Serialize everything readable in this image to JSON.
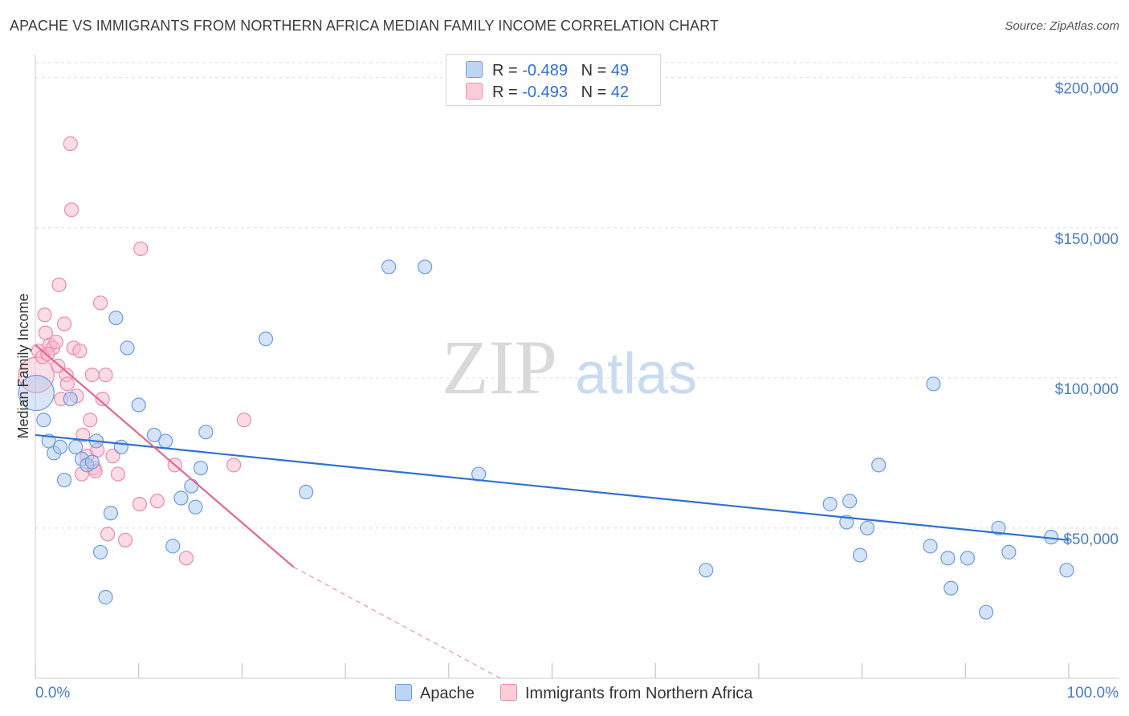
{
  "header": {
    "title": "APACHE VS IMMIGRANTS FROM NORTHERN AFRICA MEDIAN FAMILY INCOME CORRELATION CHART",
    "source": "Source: ZipAtlas.com"
  },
  "watermark": {
    "zip": "ZIP",
    "atlas": "atlas"
  },
  "legend": {
    "rows": [
      {
        "r_label": "R =",
        "r_value": "-0.489",
        "n_label": "N =",
        "n_value": "49"
      },
      {
        "r_label": "R =",
        "r_value": "-0.493",
        "n_label": "N =",
        "n_value": "42"
      }
    ]
  },
  "bottom_legend": {
    "apache": "Apache",
    "immigrants": "Immigrants from Northern Africa"
  },
  "colors": {
    "apache_fill": "#a9c8f0",
    "apache_stroke": "#6a9be0",
    "apache_line": "#2e72d2",
    "imm_fill": "#f7b8cb",
    "imm_stroke": "#ec8aa8",
    "imm_line": "#e56591",
    "grid": "#dddddd",
    "axis_text": "#4a7cc9"
  },
  "chart_data": {
    "type": "scatter",
    "title": "APACHE VS IMMIGRANTS FROM NORTHERN AFRICA MEDIAN FAMILY INCOME CORRELATION CHART",
    "xlabel": "",
    "ylabel": "Median Family Income",
    "xlim": [
      0,
      100
    ],
    "ylim": [
      0,
      205000
    ],
    "x_tick_labels": [
      "0.0%",
      "100.0%"
    ],
    "y_ticks": [
      50000,
      100000,
      150000,
      200000
    ],
    "y_tick_labels": [
      "$50,000",
      "$100,000",
      "$150,000",
      "$200,000"
    ],
    "series": [
      {
        "name": "Apache",
        "r": -0.489,
        "n": 49,
        "trend": {
          "x0": 0,
          "y0": 81000,
          "x1": 100,
          "y1": 46000
        },
        "points": [
          {
            "x": 0.1,
            "y": 95000,
            "big": true
          },
          {
            "x": 0.8,
            "y": 86000
          },
          {
            "x": 1.3,
            "y": 79000
          },
          {
            "x": 1.8,
            "y": 75000
          },
          {
            "x": 2.4,
            "y": 77000
          },
          {
            "x": 2.8,
            "y": 66000
          },
          {
            "x": 3.4,
            "y": 93000
          },
          {
            "x": 3.9,
            "y": 77000
          },
          {
            "x": 4.5,
            "y": 73000
          },
          {
            "x": 5.0,
            "y": 71000
          },
          {
            "x": 5.5,
            "y": 72000
          },
          {
            "x": 5.9,
            "y": 79000
          },
          {
            "x": 6.3,
            "y": 42000
          },
          {
            "x": 6.8,
            "y": 27000
          },
          {
            "x": 7.3,
            "y": 55000
          },
          {
            "x": 7.8,
            "y": 120000
          },
          {
            "x": 8.3,
            "y": 77000
          },
          {
            "x": 8.9,
            "y": 110000
          },
          {
            "x": 10.0,
            "y": 91000
          },
          {
            "x": 11.5,
            "y": 81000
          },
          {
            "x": 12.6,
            "y": 79000
          },
          {
            "x": 13.3,
            "y": 44000
          },
          {
            "x": 14.1,
            "y": 60000
          },
          {
            "x": 15.1,
            "y": 64000
          },
          {
            "x": 15.5,
            "y": 57000
          },
          {
            "x": 16.0,
            "y": 70000
          },
          {
            "x": 16.5,
            "y": 82000
          },
          {
            "x": 22.3,
            "y": 113000
          },
          {
            "x": 26.2,
            "y": 62000
          },
          {
            "x": 34.2,
            "y": 137000
          },
          {
            "x": 37.7,
            "y": 137000
          },
          {
            "x": 42.9,
            "y": 68000
          },
          {
            "x": 64.9,
            "y": 36000
          },
          {
            "x": 76.9,
            "y": 58000
          },
          {
            "x": 78.5,
            "y": 52000
          },
          {
            "x": 78.8,
            "y": 59000
          },
          {
            "x": 79.8,
            "y": 41000
          },
          {
            "x": 80.5,
            "y": 50000
          },
          {
            "x": 81.6,
            "y": 71000
          },
          {
            "x": 86.6,
            "y": 44000
          },
          {
            "x": 86.9,
            "y": 98000
          },
          {
            "x": 88.3,
            "y": 40000
          },
          {
            "x": 88.6,
            "y": 30000
          },
          {
            "x": 90.2,
            "y": 40000
          },
          {
            "x": 92.0,
            "y": 22000
          },
          {
            "x": 93.2,
            "y": 50000
          },
          {
            "x": 94.2,
            "y": 42000
          },
          {
            "x": 98.3,
            "y": 47000
          },
          {
            "x": 99.8,
            "y": 36000
          }
        ]
      },
      {
        "name": "Immigrants from Northern Africa",
        "r": -0.493,
        "n": 42,
        "trend": {
          "x0": 0,
          "y0": 111000,
          "x1": 25,
          "y1": 37000,
          "dashed_to_x": 45,
          "dashed_to_y": 0
        },
        "points": [
          {
            "x": 0.1,
            "y": 101000,
            "big": true
          },
          {
            "x": 0.3,
            "y": 109000
          },
          {
            "x": 0.7,
            "y": 107000
          },
          {
            "x": 0.9,
            "y": 121000
          },
          {
            "x": 1.0,
            "y": 115000
          },
          {
            "x": 1.4,
            "y": 111000
          },
          {
            "x": 1.7,
            "y": 110000
          },
          {
            "x": 2.0,
            "y": 112000
          },
          {
            "x": 2.2,
            "y": 104000
          },
          {
            "x": 2.3,
            "y": 131000
          },
          {
            "x": 2.5,
            "y": 93000
          },
          {
            "x": 2.8,
            "y": 118000
          },
          {
            "x": 3.0,
            "y": 101000
          },
          {
            "x": 3.1,
            "y": 98000
          },
          {
            "x": 3.4,
            "y": 178000
          },
          {
            "x": 3.5,
            "y": 156000
          },
          {
            "x": 3.7,
            "y": 110000
          },
          {
            "x": 4.0,
            "y": 94000
          },
          {
            "x": 4.3,
            "y": 109000
          },
          {
            "x": 4.5,
            "y": 68000
          },
          {
            "x": 4.6,
            "y": 81000
          },
          {
            "x": 5.0,
            "y": 74000
          },
          {
            "x": 5.3,
            "y": 86000
          },
          {
            "x": 5.5,
            "y": 101000
          },
          {
            "x": 5.7,
            "y": 70000
          },
          {
            "x": 6.0,
            "y": 76000
          },
          {
            "x": 6.3,
            "y": 125000
          },
          {
            "x": 6.5,
            "y": 93000
          },
          {
            "x": 6.8,
            "y": 101000
          },
          {
            "x": 7.0,
            "y": 48000
          },
          {
            "x": 7.5,
            "y": 74000
          },
          {
            "x": 8.0,
            "y": 68000
          },
          {
            "x": 8.7,
            "y": 46000
          },
          {
            "x": 10.1,
            "y": 58000
          },
          {
            "x": 10.2,
            "y": 143000
          },
          {
            "x": 11.8,
            "y": 59000
          },
          {
            "x": 13.5,
            "y": 71000
          },
          {
            "x": 14.6,
            "y": 40000
          },
          {
            "x": 19.2,
            "y": 71000
          },
          {
            "x": 20.2,
            "y": 86000
          },
          {
            "x": 1.2,
            "y": 108000
          },
          {
            "x": 5.8,
            "y": 69000
          }
        ]
      }
    ]
  }
}
